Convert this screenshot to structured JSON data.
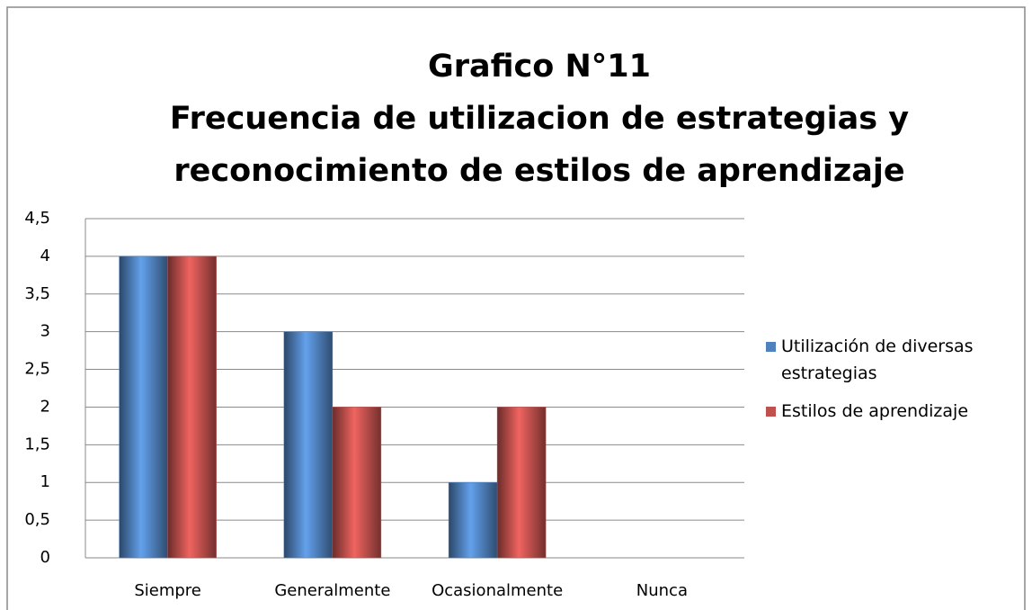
{
  "chart_data": {
    "type": "bar",
    "title": [
      "Grafico N°11",
      "Frecuencia de utilizacion de estrategias  y",
      "reconocimiento de estilos de aprendizaje"
    ],
    "categories": [
      "Siempre",
      "Generalmente",
      "Ocasionalmente",
      "Nunca"
    ],
    "series": [
      {
        "name": "Utilización de diversas estrategias",
        "color": "#4f81bd",
        "values": [
          4,
          3,
          1,
          0
        ]
      },
      {
        "name": "Estilos de aprendizaje",
        "color": "#c0504d",
        "values": [
          4,
          2,
          2,
          0
        ]
      }
    ],
    "ylim": [
      0,
      4.5
    ],
    "yticks": [
      0,
      {
        "value": 0.5,
        "label": "0,5"
      },
      1,
      {
        "value": 1.5,
        "label": "1,5"
      },
      2,
      {
        "value": 2.5,
        "label": "2,5"
      },
      3,
      {
        "value": 3.5,
        "label": "3,5"
      },
      4,
      {
        "value": 4.5,
        "label": "4,5"
      }
    ],
    "grid": true,
    "legend": "right"
  }
}
